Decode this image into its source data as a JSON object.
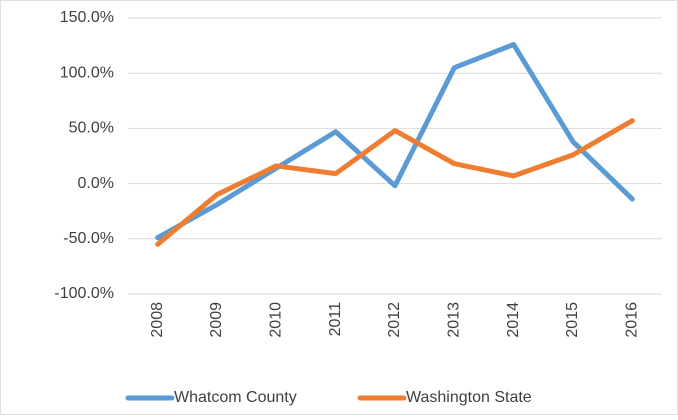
{
  "chart_data": {
    "type": "line",
    "categories": [
      "2008",
      "2009",
      "2010",
      "2011",
      "2012",
      "2013",
      "2014",
      "2015",
      "2016"
    ],
    "series": [
      {
        "name": "Whatcom County",
        "color": "#5b9bd5",
        "values": [
          -49,
          -19,
          14,
          47,
          -2,
          105,
          126,
          38,
          -14
        ]
      },
      {
        "name": "Washington State",
        "color": "#ed7d31",
        "values": [
          -55,
          -10,
          16,
          9,
          48,
          18,
          7,
          26,
          57
        ]
      }
    ],
    "ylim": [
      -100,
      150
    ],
    "yticks": [
      {
        "value": -100,
        "label": "-100.0%"
      },
      {
        "value": -50,
        "label": "-50.0%"
      },
      {
        "value": 0,
        "label": "0.0%"
      },
      {
        "value": 50,
        "label": "50.0%"
      },
      {
        "value": 100,
        "label": "100.0%"
      },
      {
        "value": 150,
        "label": "150.0%"
      }
    ],
    "grid": true,
    "legend": "bottom"
  }
}
